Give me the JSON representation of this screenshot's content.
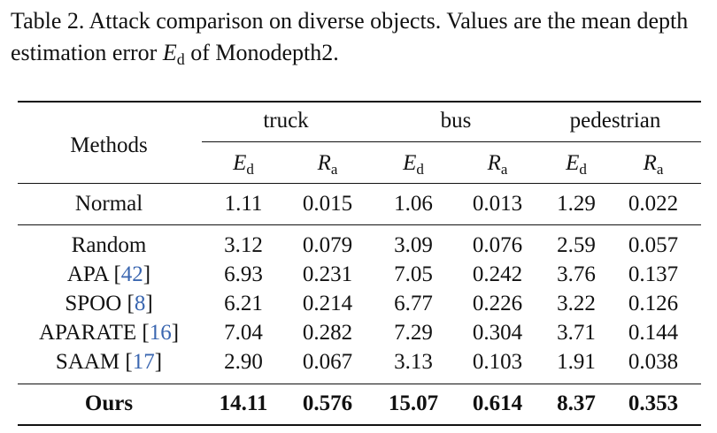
{
  "caption": {
    "label": "Table 2.",
    "text_before": "Attack comparison on diverse objects. Values are the mean depth estimation error",
    "symbol": "E",
    "symbol_sub": "d",
    "text_after": "of Monodepth2."
  },
  "header": {
    "methods": "Methods",
    "groups": [
      "truck",
      "bus",
      "pedestrian"
    ],
    "metric_a": {
      "symbol": "E",
      "sub": "d"
    },
    "metric_b": {
      "symbol": "R",
      "sub": "a"
    }
  },
  "rows": [
    {
      "name": "Normal",
      "ref": "",
      "values": [
        "1.11",
        "0.015",
        "1.06",
        "0.013",
        "1.29",
        "0.022"
      ],
      "bold": false
    },
    {
      "name": "Random",
      "ref": "",
      "values": [
        "3.12",
        "0.079",
        "3.09",
        "0.076",
        "2.59",
        "0.057"
      ],
      "bold": false
    },
    {
      "name": "APA",
      "ref": "42",
      "values": [
        "6.93",
        "0.231",
        "7.05",
        "0.242",
        "3.76",
        "0.137"
      ],
      "bold": false
    },
    {
      "name": "SPOO",
      "ref": "8",
      "values": [
        "6.21",
        "0.214",
        "6.77",
        "0.226",
        "3.22",
        "0.126"
      ],
      "bold": false
    },
    {
      "name": "APARATE",
      "ref": "16",
      "values": [
        "7.04",
        "0.282",
        "7.29",
        "0.304",
        "3.71",
        "0.144"
      ],
      "bold": false
    },
    {
      "name": "SAAM",
      "ref": "17",
      "values": [
        "2.90",
        "0.067",
        "3.13",
        "0.103",
        "1.91",
        "0.038"
      ],
      "bold": false
    },
    {
      "name": "Ours",
      "ref": "",
      "values": [
        "14.11",
        "0.576",
        "15.07",
        "0.614",
        "8.37",
        "0.353"
      ],
      "bold": true
    }
  ]
}
